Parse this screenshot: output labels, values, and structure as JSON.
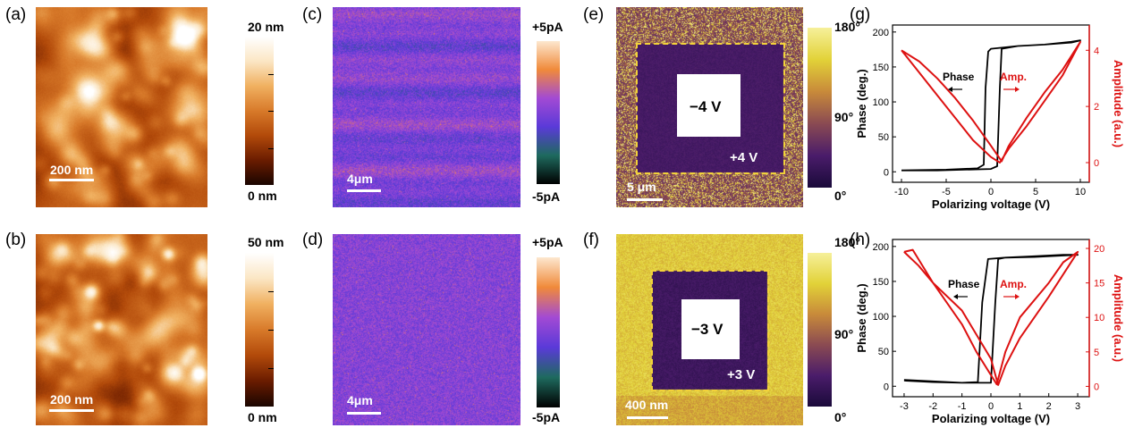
{
  "panels": {
    "a": {
      "label": "(a)",
      "scale": "200 nm",
      "cbar_max": "20 nm",
      "cbar_min": "0 nm"
    },
    "b": {
      "label": "(b)",
      "scale": "200 nm",
      "cbar_max": "50 nm",
      "cbar_min": "0 nm"
    },
    "c": {
      "label": "(c)",
      "scale": "4μm",
      "cbar_max": "+5pA",
      "cbar_min": "-5pA"
    },
    "d": {
      "label": "(d)",
      "scale": "4μm",
      "cbar_max": "+5pA",
      "cbar_min": "-5pA"
    },
    "e": {
      "label": "(e)",
      "scale": "5 μm",
      "inner_voltage": "−4 V",
      "outer_voltage": "+4 V",
      "cbar_max": "180°",
      "cbar_mid": "90°",
      "cbar_min": "0°"
    },
    "f": {
      "label": "(f)",
      "scale": "400 nm",
      "inner_voltage": "−3 V",
      "outer_voltage": "+3 V",
      "cbar_max": "180°",
      "cbar_mid": "90°",
      "cbar_min": "0°"
    },
    "g": {
      "label": "(g)"
    },
    "h": {
      "label": "(h)"
    }
  },
  "colors": {
    "afm": [
      "#1a0500",
      "#6a1c00",
      "#b24a0a",
      "#d87a2a",
      "#f0b060",
      "#fbe6c4",
      "#ffffff"
    ],
    "current": [
      "#000000",
      "#1e6a5e",
      "#5a3ad8",
      "#a24ad4",
      "#f08a3a",
      "#fde7cf"
    ],
    "phase": [
      "#1a0a3a",
      "#4a1c6a",
      "#8a4a52",
      "#c88a3a",
      "#e2d238",
      "#f6f09a"
    ],
    "phase_curve": "#000000",
    "amp_curve": "#dd1111",
    "dashed_box": "#f2d23a"
  },
  "chart_data": [
    {
      "type": "line",
      "panel": "g",
      "xlabel": "Polarizing voltage (V)",
      "ylabel": "Phase (deg.)",
      "y2label": "Amplitude (a.u.)",
      "xlim": [
        -11,
        11
      ],
      "ylim": [
        -15,
        210
      ],
      "y2lim": [
        -0.7,
        4.9
      ],
      "xticks": [
        -10,
        -5,
        0,
        5,
        10
      ],
      "yticks": [
        0,
        50,
        100,
        150,
        200
      ],
      "y2ticks": [
        0,
        2,
        4
      ],
      "annotations": [
        "Phase",
        "Amp."
      ],
      "series": [
        {
          "axis": "y1",
          "x": [
            -10,
            -5,
            -1.5,
            -0.8,
            -0.6,
            -0.3,
            0,
            3,
            6,
            9,
            10,
            9,
            6,
            3,
            1.2,
            1.0,
            0.7,
            0,
            -3,
            -6,
            -10
          ],
          "y": [
            2,
            3,
            5,
            10,
            120,
            172,
            176,
            180,
            182,
            186,
            188,
            185,
            182,
            180,
            176,
            120,
            8,
            4,
            3,
            2,
            2
          ]
        },
        {
          "axis": "y2",
          "x": [
            -10,
            -8,
            -6,
            -4,
            -2,
            0,
            1,
            2,
            4,
            6,
            8,
            10,
            8,
            6,
            4,
            2,
            1.2,
            0,
            -2,
            -4,
            -6,
            -8,
            -10
          ],
          "y": [
            4.0,
            3.2,
            2.4,
            1.6,
            0.8,
            0.2,
            0.0,
            0.5,
            1.3,
            2.2,
            3.1,
            4.3,
            3.3,
            2.5,
            1.6,
            0.6,
            0.05,
            0.6,
            1.5,
            2.3,
            3.0,
            3.6,
            4.0
          ]
        }
      ]
    },
    {
      "type": "line",
      "panel": "h",
      "xlabel": "Polarizing voltage (V)",
      "ylabel": "Phase (deg.)",
      "y2label": "Amplitude (a.u.)",
      "xlim": [
        -3.4,
        3.4
      ],
      "ylim": [
        -15,
        210
      ],
      "y2lim": [
        -1.5,
        21.3
      ],
      "xticks": [
        -3,
        -2,
        -1,
        0,
        1,
        2,
        3
      ],
      "yticks": [
        0,
        50,
        100,
        150,
        200
      ],
      "y2ticks": [
        0,
        5,
        10,
        15,
        20
      ],
      "annotations": [
        "Phase",
        "Amp."
      ],
      "series": [
        {
          "axis": "y1",
          "x": [
            -3,
            -2,
            -1,
            -0.45,
            -0.3,
            -0.1,
            0.5,
            1.5,
            2.5,
            3,
            2.5,
            1.5,
            0.5,
            0.25,
            0.15,
            0.0,
            -1,
            -2,
            -3
          ],
          "y": [
            8,
            6,
            5,
            6,
            120,
            182,
            184,
            186,
            188,
            188,
            187,
            185,
            184,
            182,
            120,
            5,
            5,
            7,
            9
          ]
        },
        {
          "axis": "y2",
          "x": [
            -3,
            -2.5,
            -2,
            -1,
            0,
            0.25,
            0.5,
            1,
            2,
            3,
            2.5,
            2,
            1,
            0.5,
            0.2,
            -0.5,
            -1,
            -2,
            -2.7,
            -3
          ],
          "y": [
            19.5,
            17.5,
            15,
            11,
            4,
            0.2,
            3,
            7,
            13,
            19.5,
            18,
            15,
            10,
            5,
            0.3,
            5,
            9,
            15,
            19.8,
            19.5
          ]
        }
      ]
    }
  ]
}
